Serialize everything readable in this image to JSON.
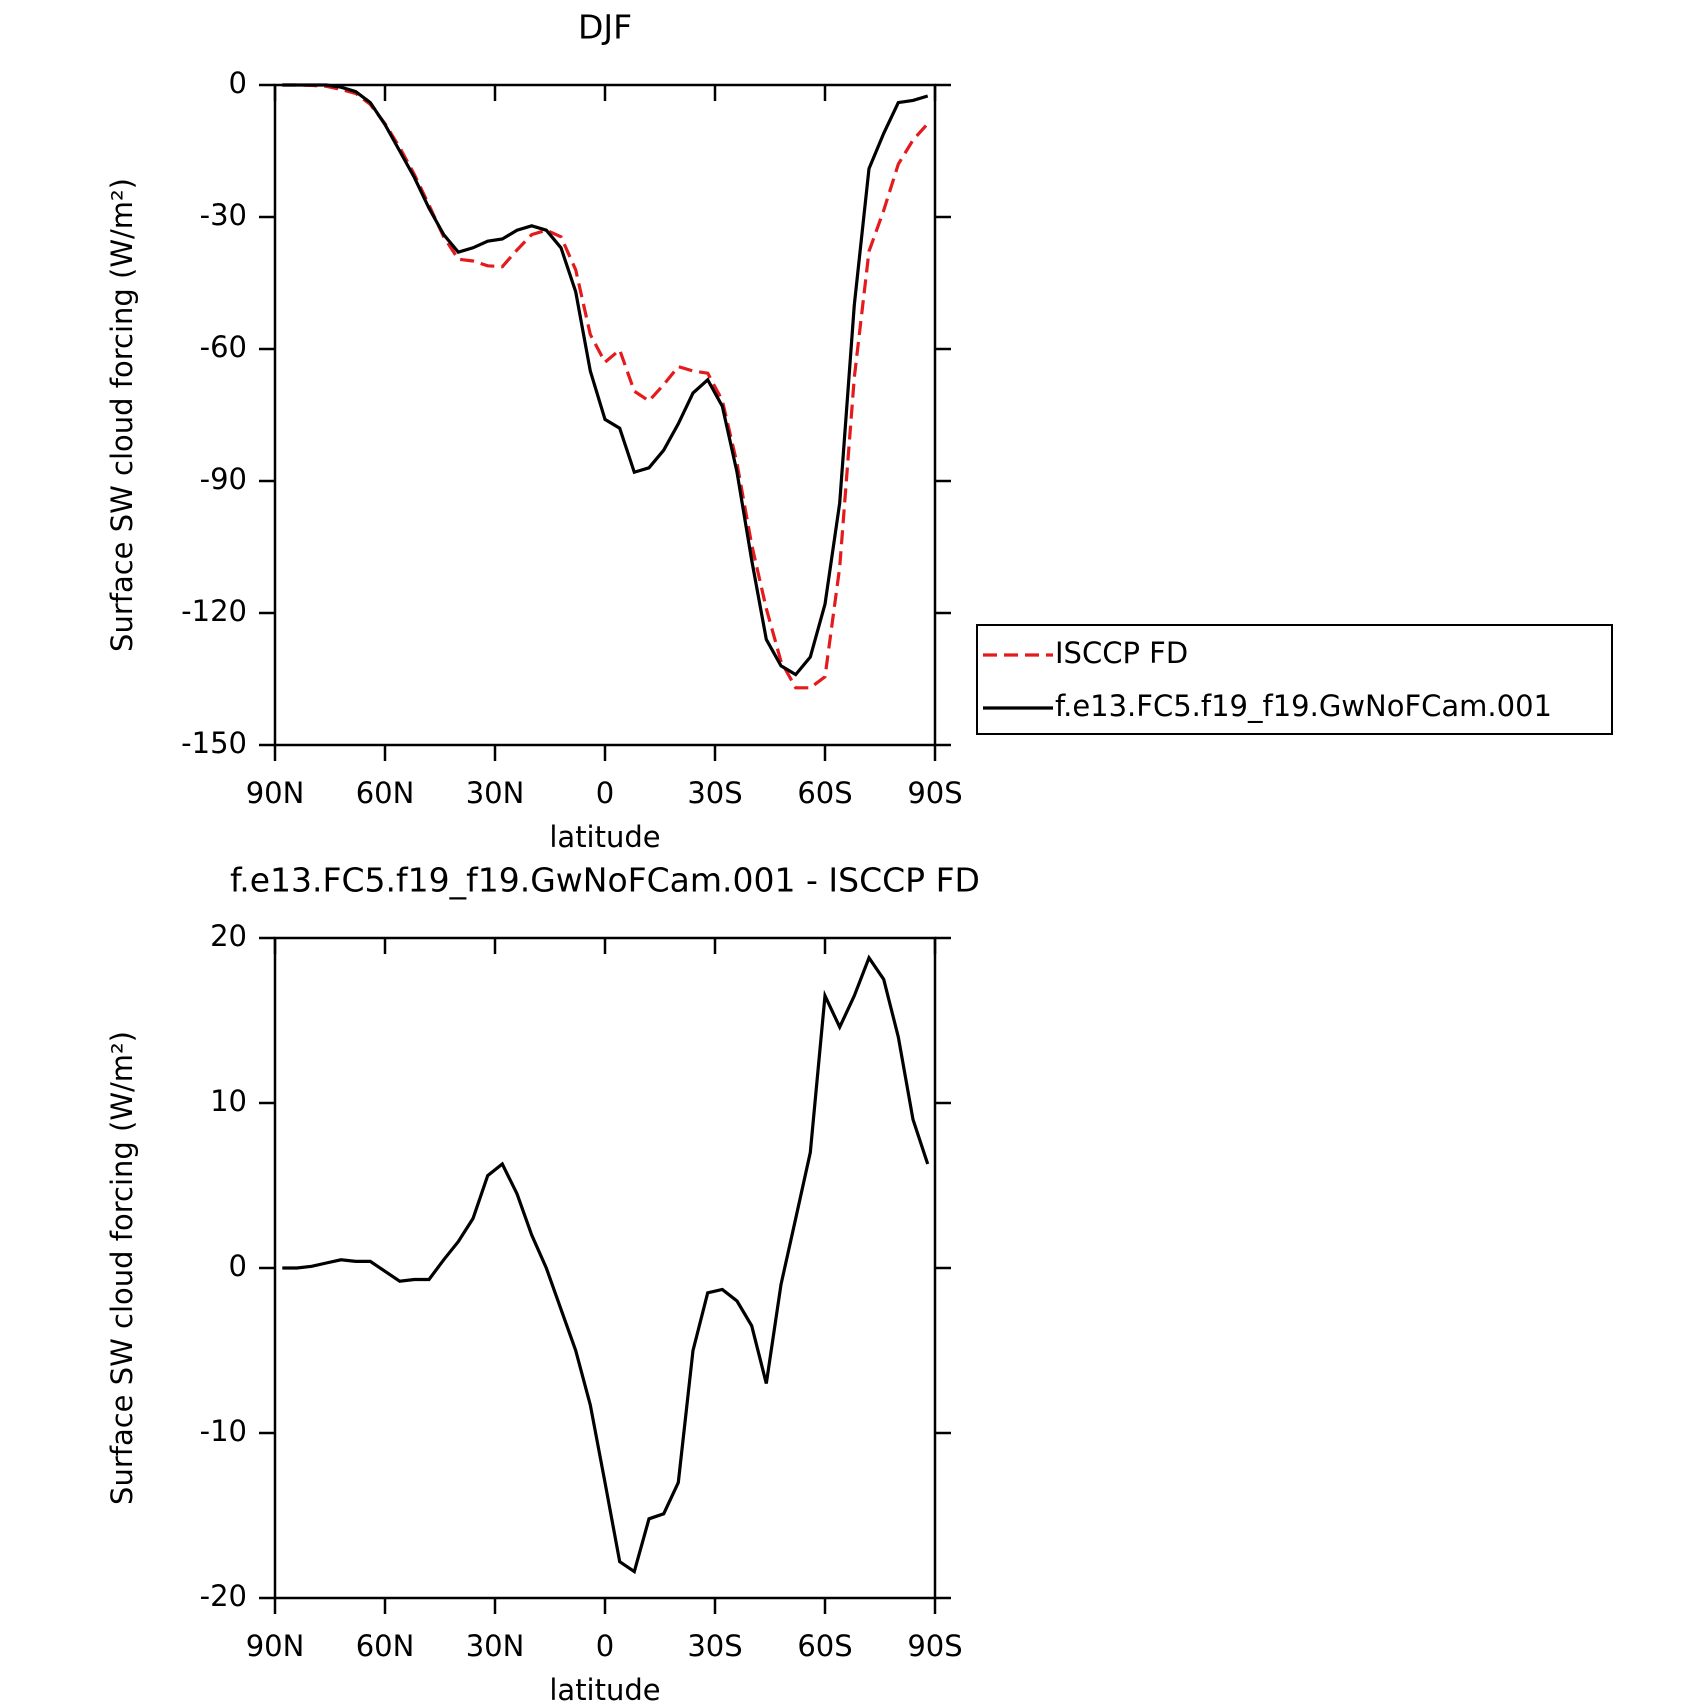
{
  "chart_data": [
    {
      "type": "line",
      "title": "DJF",
      "xlabel": "latitude",
      "ylabel": "Surface SW cloud forcing (W/m²)",
      "x": [
        88,
        84,
        80,
        76,
        72,
        68,
        64,
        60,
        56,
        52,
        48,
        44,
        40,
        36,
        32,
        28,
        24,
        20,
        16,
        12,
        8,
        4,
        0,
        -4,
        -8,
        -12,
        -16,
        -20,
        -24,
        -28,
        -32,
        -36,
        -40,
        -44,
        -48,
        -52,
        -56,
        -60,
        -64,
        -68,
        -72,
        -76,
        -80,
        -84,
        -88
      ],
      "series": [
        {
          "name": "ISCCP FD",
          "color": "#e41a1c",
          "dash": true,
          "values": [
            0,
            0,
            -0.1,
            -0.3,
            -1,
            -1.9,
            -4.4,
            -8.8,
            -14.2,
            -20.3,
            -27.3,
            -34.5,
            -39.6,
            -40,
            -41.1,
            -41.3,
            -37.5,
            -34,
            -33,
            -34.5,
            -42,
            -56.7,
            -63,
            -60.2,
            -69.6,
            -71.8,
            -68.1,
            -64,
            -65,
            -65.5,
            -71.7,
            -86,
            -104.5,
            -119,
            -131,
            -137,
            -137,
            -134.5,
            -109.6,
            -66.5,
            -37.8,
            -28.5,
            -18,
            -12.5,
            -8.8
          ]
        },
        {
          "name": "f.e13.FC5.f19_f19.GwNoFCam.001",
          "color": "#000000",
          "dash": false,
          "values": [
            0,
            0,
            0,
            0,
            -0.5,
            -1.5,
            -4,
            -9,
            -15,
            -21,
            -28,
            -34,
            -38,
            -37,
            -35.5,
            -35,
            -33,
            -32,
            -33,
            -37,
            -47,
            -65,
            -76,
            -78,
            -88,
            -87,
            -83,
            -77,
            -70,
            -67,
            -73,
            -88,
            -108,
            -126,
            -132,
            -134,
            -130,
            -118,
            -95,
            -50,
            -19,
            -11,
            -4,
            -3.5,
            -2.5
          ]
        }
      ],
      "xlim": [
        90,
        -90
      ],
      "xticks": [
        {
          "value": 90,
          "label": "90N"
        },
        {
          "value": 60,
          "label": "60N"
        },
        {
          "value": 30,
          "label": "30N"
        },
        0,
        {
          "value": -30,
          "label": "30S"
        },
        {
          "value": -60,
          "label": "60S"
        },
        {
          "value": -90,
          "label": "90S"
        }
      ],
      "ylim": [
        -150,
        0
      ],
      "yticks": [
        0,
        -30,
        -60,
        -90,
        -120,
        -150
      ],
      "legend": "right"
    },
    {
      "type": "line",
      "title": "f.e13.FC5.f19_f19.GwNoFCam.001 - ISCCP FD",
      "xlabel": "latitude",
      "ylabel": "Surface SW cloud forcing (W/m²)",
      "x": [
        88,
        84,
        80,
        76,
        72,
        68,
        64,
        60,
        56,
        52,
        48,
        44,
        40,
        36,
        32,
        28,
        24,
        20,
        16,
        12,
        8,
        4,
        0,
        -4,
        -8,
        -12,
        -16,
        -20,
        -24,
        -28,
        -32,
        -36,
        -40,
        -44,
        -48,
        -52,
        -56,
        -60,
        -64,
        -68,
        -72,
        -76,
        -80,
        -84,
        -88
      ],
      "series": [
        {
          "color": "#000000",
          "dash": false,
          "values": [
            0,
            0,
            0.1,
            0.3,
            0.5,
            0.4,
            0.4,
            -0.2,
            -0.8,
            -0.7,
            -0.7,
            0.5,
            1.6,
            3,
            5.6,
            6.3,
            4.5,
            2,
            0,
            -2.5,
            -5,
            -8.3,
            -13,
            -17.8,
            -18.4,
            -15.2,
            -14.9,
            -13,
            -5,
            -1.5,
            -1.3,
            -2,
            -3.5,
            -7,
            -1,
            3,
            7,
            16.5,
            14.6,
            16.5,
            18.8,
            17.5,
            14,
            9,
            6.3
          ]
        }
      ],
      "xlim": [
        90,
        -90
      ],
      "xticks": [
        {
          "value": 90,
          "label": "90N"
        },
        {
          "value": 60,
          "label": "60N"
        },
        {
          "value": 30,
          "label": "30N"
        },
        0,
        {
          "value": -30,
          "label": "30S"
        },
        {
          "value": -60,
          "label": "60S"
        },
        {
          "value": -90,
          "label": "90S"
        }
      ],
      "ylim": [
        -20,
        20
      ],
      "yticks": [
        20,
        10,
        0,
        -10,
        -20
      ]
    }
  ]
}
